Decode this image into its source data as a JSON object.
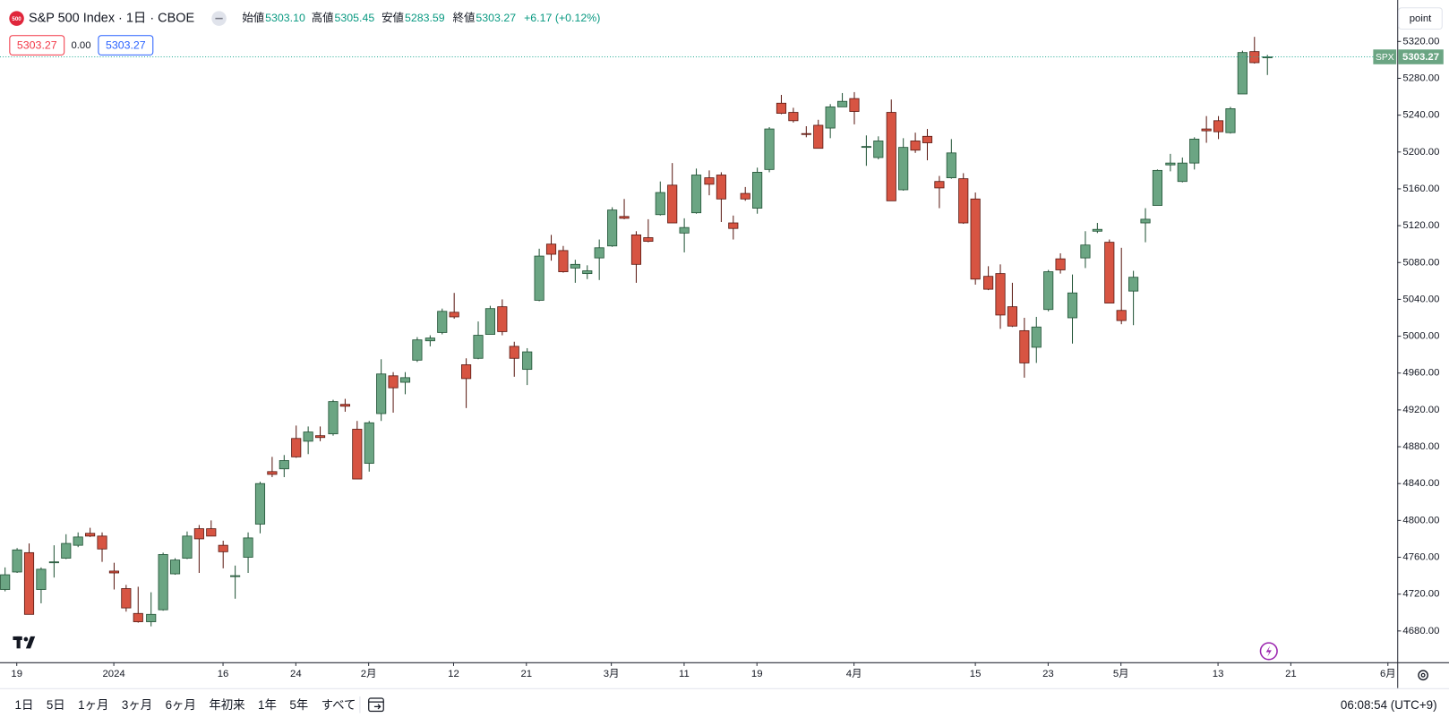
{
  "header": {
    "symbol_icon": "500",
    "title": "S&P 500 Index · 1日 · CBOE",
    "ohlc": [
      {
        "label": "始値",
        "value": "5303.10"
      },
      {
        "label": "高値",
        "value": "5305.45"
      },
      {
        "label": "安値",
        "value": "5283.59"
      },
      {
        "label": "終値",
        "value": "5303.27"
      }
    ],
    "change": "+6.17 (+0.12%)"
  },
  "price_boxes": [
    "5303.27",
    "0.00",
    "5303.27"
  ],
  "scale_button": "point",
  "price_tag": {
    "symbol": "SPX",
    "value": "5303.27"
  },
  "toolbar": {
    "ranges": [
      "1日",
      "5日",
      "1ヶ月",
      "3ヶ月",
      "6ヶ月",
      "年初来",
      "1年",
      "5年",
      "すべて"
    ],
    "clock": "06:08:54 (UTC+9)"
  },
  "chart_data": {
    "type": "candlestick",
    "open": [
      4725,
      4744,
      4765,
      4725,
      4754,
      4759,
      4773,
      4786,
      4783,
      4745,
      4726,
      4699,
      4690,
      4703,
      4742,
      4759,
      4791,
      4791,
      4773,
      4739,
      4760,
      4796,
      4853,
      4856,
      4889,
      4886,
      4892,
      4894,
      4926,
      4899,
      4862,
      4916,
      4957,
      4950,
      4974,
      4995,
      5004,
      5026,
      4969,
      4976,
      5002,
      5032,
      4989,
      4964,
      5039,
      5100,
      5093,
      5074,
      5068,
      5085,
      5098,
      5130,
      5110,
      5107,
      5132,
      5164,
      5112,
      5134,
      5172,
      5175,
      5123,
      5155,
      5139,
      5181,
      5253,
      5243,
      5220,
      5229,
      5226,
      5249,
      5258,
      5205,
      5194,
      5243,
      5159,
      5212,
      5217,
      5168,
      5172,
      5171,
      5149,
      5065,
      5068,
      5032,
      5006,
      4988,
      5029,
      5084,
      5020,
      5085,
      5114,
      5102,
      5028,
      5049,
      5123,
      5142,
      5186,
      5168,
      5188,
      5225,
      5234,
      5221,
      5263,
      5309,
      5303.1
    ],
    "high": [
      4749,
      4770,
      4775,
      4749,
      4773,
      4785,
      4787,
      4792,
      4787,
      4754,
      4730,
      4728,
      4722,
      4765,
      4759,
      4788,
      4795,
      4800,
      4778,
      4751,
      4787,
      4842,
      4869,
      4871,
      4903,
      4902,
      4902,
      4931,
      4932,
      4908,
      4908,
      4975,
      4961,
      4961,
      4999,
      5001,
      5030,
      5047,
      4976,
      5016,
      5033,
      5040,
      4994,
      4987,
      5095,
      5110,
      5098,
      5083,
      5077,
      5105,
      5140,
      5149,
      5114,
      5127,
      5168,
      5188,
      5128,
      5182,
      5180,
      5178,
      5131,
      5162,
      5183,
      5227,
      5262,
      5248,
      5228,
      5235,
      5252,
      5264,
      5265,
      5218,
      5217,
      5257,
      5215,
      5221,
      5225,
      5174,
      5214,
      5177,
      5156,
      5076,
      5078,
      5058,
      5020,
      5021,
      5072,
      5090,
      5067,
      5114,
      5123,
      5105,
      5096,
      5071,
      5139,
      5181,
      5198,
      5194,
      5216,
      5239,
      5239,
      5249,
      5310,
      5325,
      5305.45
    ],
    "low": [
      4723,
      4743,
      4698,
      4710,
      4738,
      4758,
      4771,
      4782,
      4755,
      4725,
      4701,
      4689,
      4685,
      4702,
      4741,
      4758,
      4743,
      4783,
      4748,
      4715,
      4743,
      4786,
      4847,
      4847,
      4868,
      4872,
      4886,
      4892,
      4918,
      4845,
      4853,
      4908,
      4917,
      4937,
      4972,
      4989,
      5002,
      5019,
      4922,
      4975,
      5002,
      5001,
      4956,
      4947,
      5038,
      5082,
      5069,
      5058,
      5062,
      5061,
      5097,
      5127,
      5058,
      5102,
      5131,
      5123,
      5091,
      5133,
      5153,
      5124,
      5105,
      5147,
      5133,
      5178,
      5241,
      5232,
      5216,
      5204,
      5215,
      5249,
      5230,
      5185,
      5192,
      5147,
      5158,
      5199,
      5191,
      5139,
      5171,
      5122,
      5056,
      5050,
      5008,
      5010,
      4955,
      4971,
      5027,
      5068,
      4992,
      5074,
      5112,
      5036,
      5013,
      5012,
      5102,
      5142,
      5179,
      5167,
      5181,
      5210,
      5214,
      5220,
      5263,
      5296,
      5283.59
    ],
    "close": [
      4741,
      4768,
      4698,
      4747,
      4755,
      4775,
      4782,
      4783,
      4769,
      4743,
      4705,
      4690,
      4698,
      4763,
      4757,
      4783,
      4780,
      4783,
      4766,
      4740,
      4781,
      4840,
      4850,
      4865,
      4869,
      4896,
      4890,
      4929,
      4924,
      4845,
      4906,
      4959,
      4944,
      4955,
      4996,
      4998,
      5027,
      5021,
      4954,
      5001,
      5030,
      5005,
      4976,
      4983,
      5087,
      5089,
      5070,
      5078,
      5071,
      5096,
      5137,
      5128,
      5078,
      5103,
      5156,
      5123,
      5118,
      5175,
      5165,
      5149,
      5117,
      5149,
      5178,
      5225,
      5242,
      5234,
      5219,
      5204,
      5249,
      5255,
      5244,
      5206,
      5212,
      5147,
      5205,
      5202,
      5210,
      5161,
      5199,
      5123,
      5062,
      5051,
      5023,
      5011,
      4971,
      5010,
      5070,
      5072,
      5047,
      5099,
      5116,
      5036,
      5017,
      5064,
      5127,
      5180,
      5188,
      5188,
      5214,
      5223,
      5222,
      5247,
      5308,
      5297,
      5303.27
    ],
    "up_color": "#6ba583",
    "up_border": "#225437",
    "down_color": "#d75442",
    "down_border": "#5b1a13",
    "ylim": [
      4646,
      5357
    ],
    "yticks": [
      {
        "value": 4680,
        "label": "4680.00"
      },
      {
        "value": 4720,
        "label": "4720.00"
      },
      {
        "value": 4760,
        "label": "4760.00"
      },
      {
        "value": 4800,
        "label": "4800.00"
      },
      {
        "value": 4840,
        "label": "4840.00"
      },
      {
        "value": 4880,
        "label": "4880.00"
      },
      {
        "value": 4920,
        "label": "4920.00"
      },
      {
        "value": 4960,
        "label": "4960.00"
      },
      {
        "value": 5000,
        "label": "5000.00"
      },
      {
        "value": 5040,
        "label": "5040.00"
      },
      {
        "value": 5080,
        "label": "5080.00"
      },
      {
        "value": 5120,
        "label": "5120.00"
      },
      {
        "value": 5160,
        "label": "5160.00"
      },
      {
        "value": 5200,
        "label": "5200.00"
      },
      {
        "value": 5240,
        "label": "5240.00"
      },
      {
        "value": 5280,
        "label": "5280.00"
      },
      {
        "value": 5320,
        "label": "5320.00"
      }
    ],
    "xlim": [
      -0.38,
      114.77
    ],
    "xticks": [
      {
        "value": 1,
        "label": "19"
      },
      {
        "value": 9,
        "label": "2024"
      },
      {
        "value": 18,
        "label": "16"
      },
      {
        "value": 24,
        "label": "24"
      },
      {
        "value": 30,
        "label": "2月"
      },
      {
        "value": 37,
        "label": "12"
      },
      {
        "value": 43,
        "label": "21"
      },
      {
        "value": 50,
        "label": "3月"
      },
      {
        "value": 56,
        "label": "11"
      },
      {
        "value": 62,
        "label": "19"
      },
      {
        "value": 70,
        "label": "4月"
      },
      {
        "value": 80,
        "label": "15"
      },
      {
        "value": 86,
        "label": "23"
      },
      {
        "value": 92,
        "label": "5月"
      },
      {
        "value": 100,
        "label": "13"
      },
      {
        "value": 106,
        "label": "21"
      },
      {
        "value": 114,
        "label": "6月"
      }
    ]
  }
}
